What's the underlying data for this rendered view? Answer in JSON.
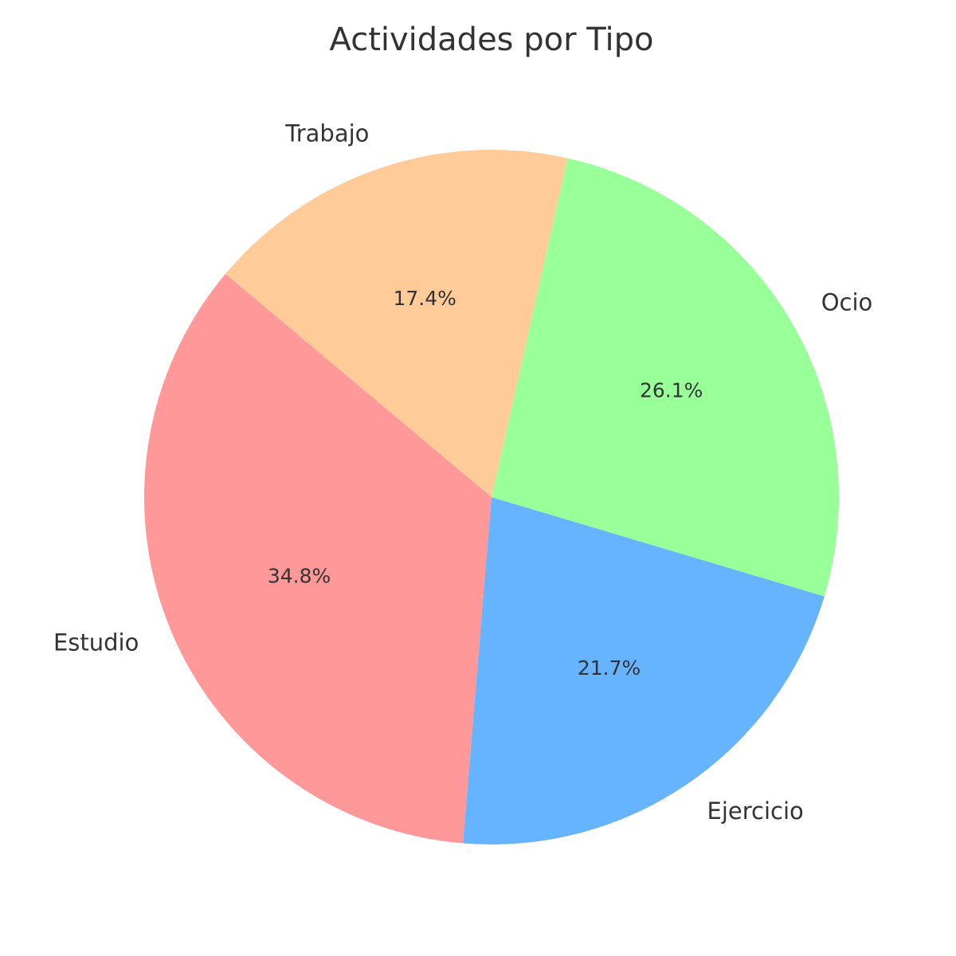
{
  "chart_data": {
    "type": "pie",
    "title": "Actividades por Tipo",
    "categories": [
      "Estudio",
      "Ejercicio",
      "Ocio",
      "Trabajo"
    ],
    "values": [
      34.8,
      21.7,
      26.1,
      17.4
    ],
    "percent_labels": [
      "34.8%",
      "21.7%",
      "26.1%",
      "17.4%"
    ],
    "colors": [
      "#ff9999",
      "#66b3ff",
      "#99ff99",
      "#ffcc99"
    ],
    "start_angle_deg": 140,
    "direction": "counterclockwise",
    "legend": "none"
  }
}
